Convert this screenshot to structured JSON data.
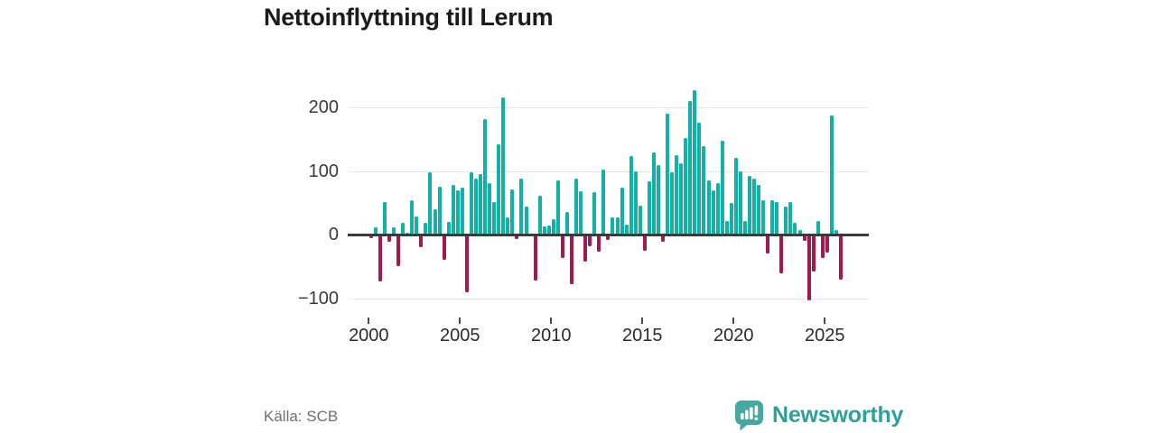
{
  "title": "Nettoinflyttning till Lerum",
  "source": "Källa: SCB",
  "logo": {
    "brand": "Newsworthy"
  },
  "colors": {
    "positive": "#12b0a5",
    "negative": "#a21a52",
    "grid": "#e8e8e8",
    "zero_line": "#3a3a3a",
    "axis_text": "#3a3a3a",
    "title_text": "#1b1b1b",
    "source_text": "#6f6f6f",
    "brand_teal": "#2f9f97",
    "brand_icon_teal": "#47a8a2"
  },
  "chart_data": {
    "type": "bar",
    "frequency": "quarterly",
    "start_year": 2000,
    "values": [
      -5,
      12,
      -73,
      51,
      -11,
      12,
      -49,
      19,
      3,
      55,
      29,
      -19,
      19,
      99,
      40,
      75,
      -39,
      20,
      78,
      70,
      74,
      -90,
      98,
      88,
      95,
      182,
      81,
      51,
      142,
      216,
      28,
      71,
      -7,
      88,
      45,
      2,
      -72,
      61,
      13,
      15,
      25,
      86,
      -37,
      36,
      -77,
      88,
      68,
      -42,
      -18,
      67,
      -27,
      102,
      -8,
      28,
      28,
      74,
      16,
      124,
      100,
      46,
      -25,
      84,
      130,
      110,
      -11,
      191,
      98,
      125,
      113,
      152,
      210,
      228,
      176,
      140,
      85,
      70,
      81,
      148,
      21,
      50,
      121,
      100,
      21,
      93,
      88,
      79,
      55,
      -29,
      55,
      52,
      -60,
      45,
      52,
      19,
      8,
      -9,
      -103,
      -58,
      21,
      -37,
      -28,
      187,
      8,
      -70
    ],
    "xticks": [
      2000,
      2005,
      2010,
      2015,
      2020,
      2025
    ],
    "yticks": [
      200,
      100,
      0,
      -100
    ],
    "ytick_labels": [
      "200",
      "100",
      "0",
      "−100"
    ],
    "ylim": [
      -120,
      245
    ],
    "grid": true,
    "legend": "none",
    "title": "Nettoinflyttning till Lerum",
    "xlabel": "",
    "ylabel": ""
  }
}
